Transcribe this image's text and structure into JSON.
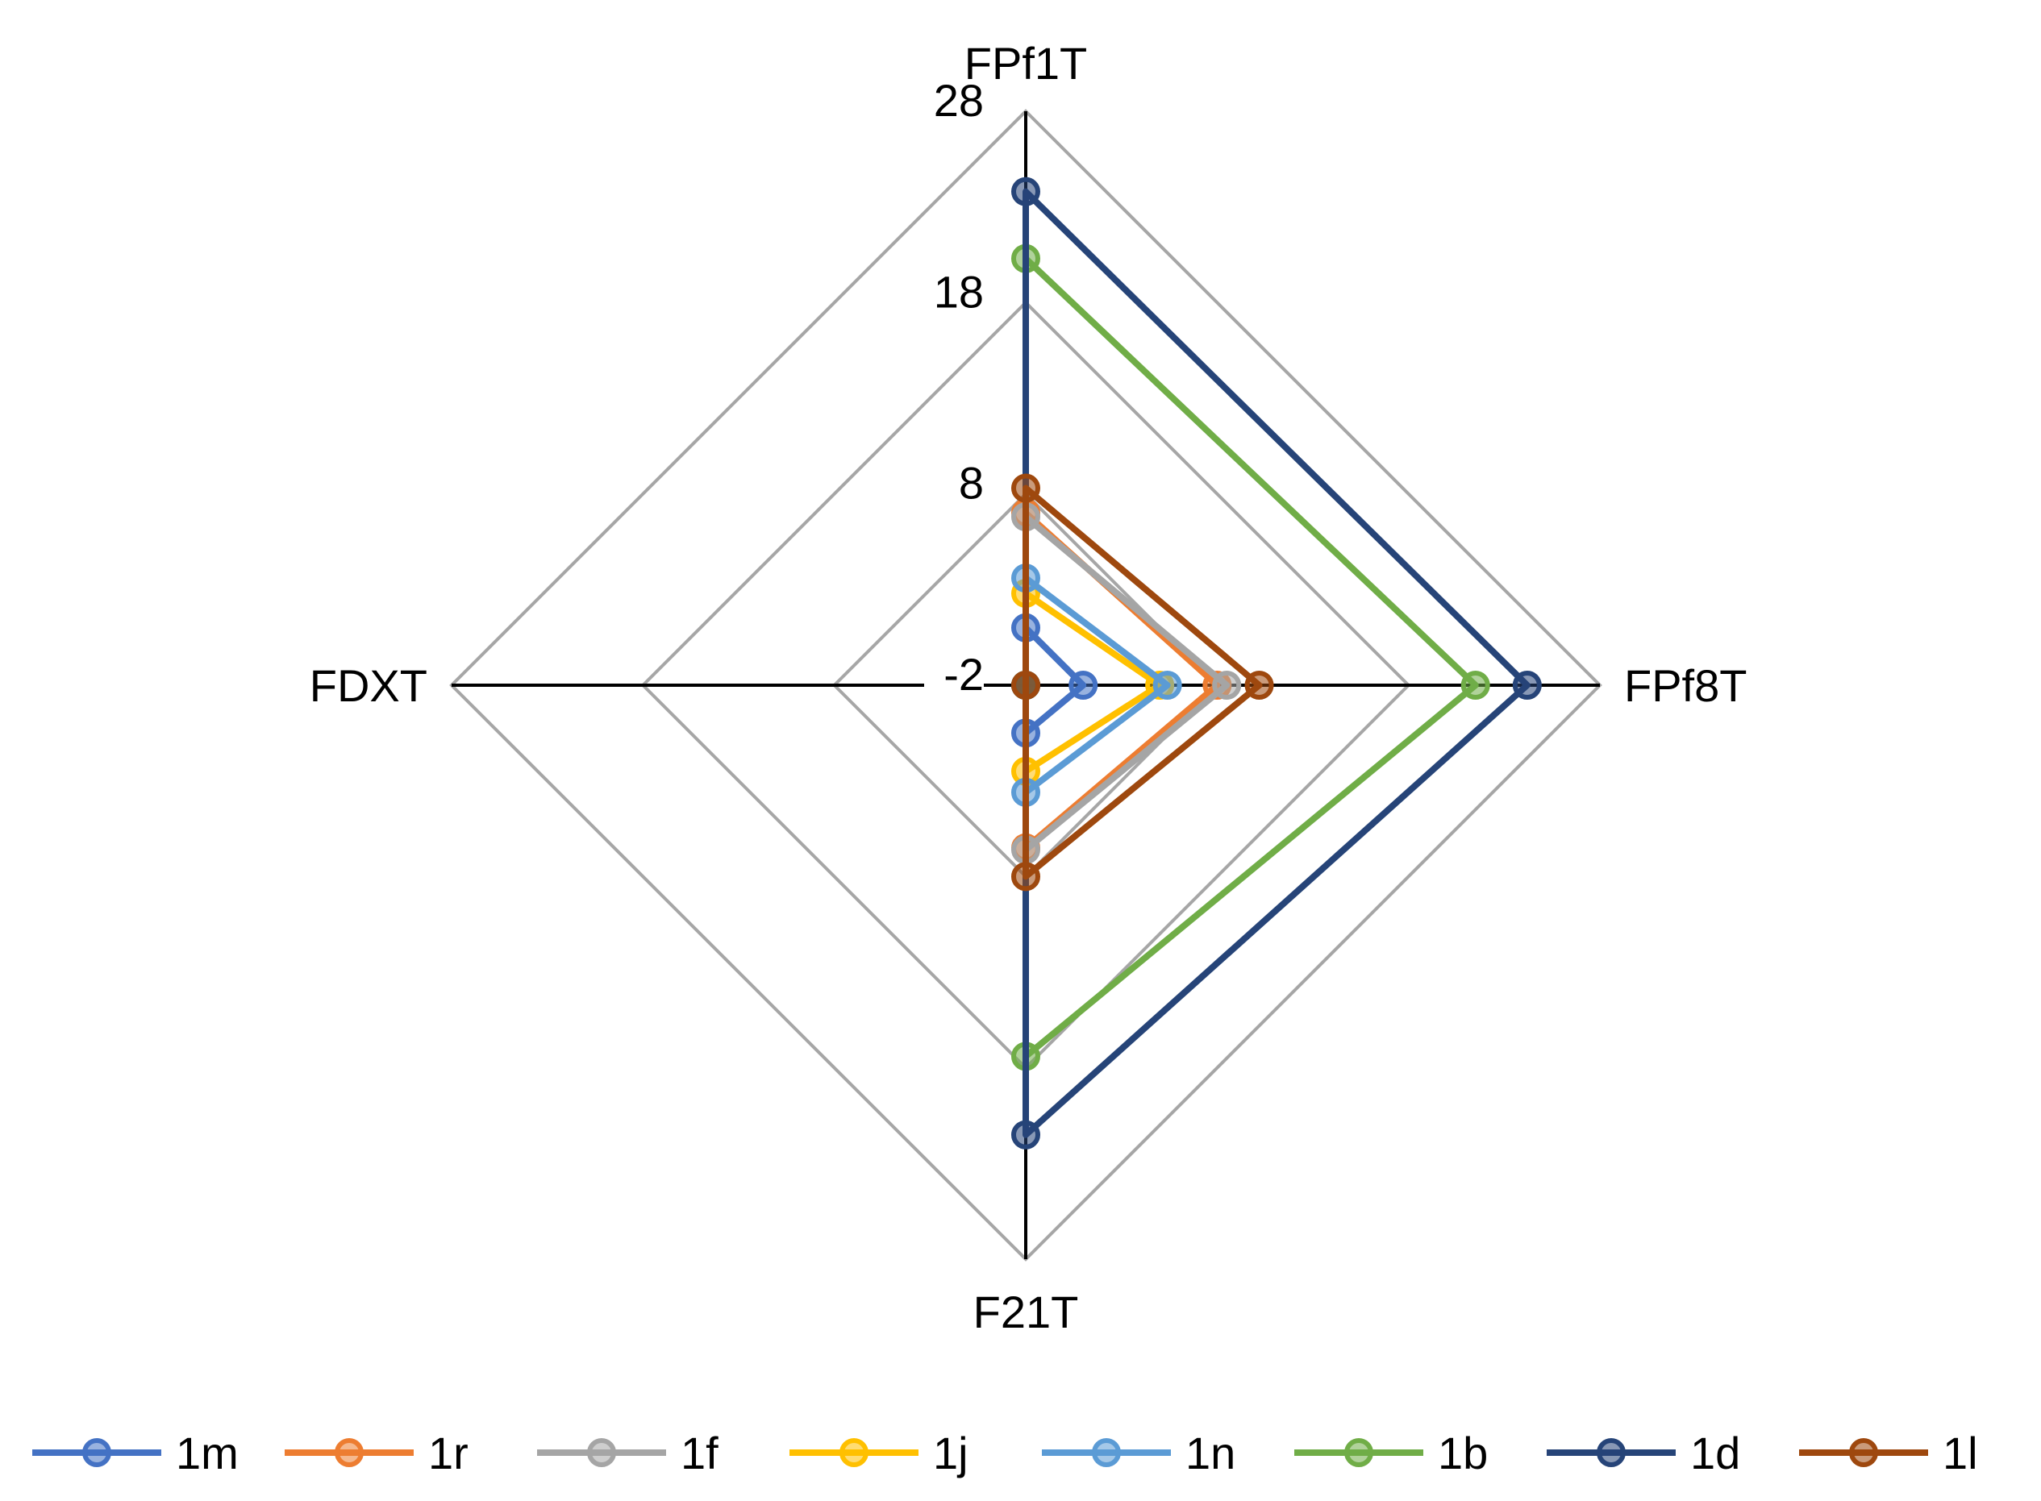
{
  "chart_data": {
    "type": "radar",
    "axes": [
      "FPf1T",
      "FPf8T",
      "F21T",
      "FDXT"
    ],
    "rlim": [
      -2,
      28
    ],
    "ticks": [
      -2,
      8,
      18,
      28
    ],
    "tick_labels": [
      "-2",
      "8",
      "18",
      "28"
    ],
    "grid": true,
    "legend_position": "bottom",
    "series": [
      {
        "name": "1m",
        "color": "#4472C4",
        "values": [
          1.0,
          1.0,
          0.5,
          -2.0
        ]
      },
      {
        "name": "1r",
        "color": "#ED7D31",
        "values": [
          7.0,
          8.0,
          6.5,
          -2.0
        ]
      },
      {
        "name": "1f",
        "color": "#A5A5A5",
        "values": [
          6.8,
          8.5,
          6.6,
          -2.0
        ]
      },
      {
        "name": "1j",
        "color": "#FFC000",
        "values": [
          2.8,
          5.0,
          2.5,
          -2.0
        ]
      },
      {
        "name": "1n",
        "color": "#5B9BD5",
        "values": [
          3.6,
          5.4,
          3.6,
          -2.0
        ]
      },
      {
        "name": "1b",
        "color": "#70AD47",
        "values": [
          20.3,
          21.5,
          17.4,
          -2.0
        ]
      },
      {
        "name": "1d",
        "color": "#264478",
        "values": [
          23.8,
          24.2,
          21.5,
          -2.0
        ]
      },
      {
        "name": "1l",
        "color": "#9E480E",
        "values": [
          8.3,
          10.2,
          8.0,
          -2.0
        ]
      }
    ]
  }
}
